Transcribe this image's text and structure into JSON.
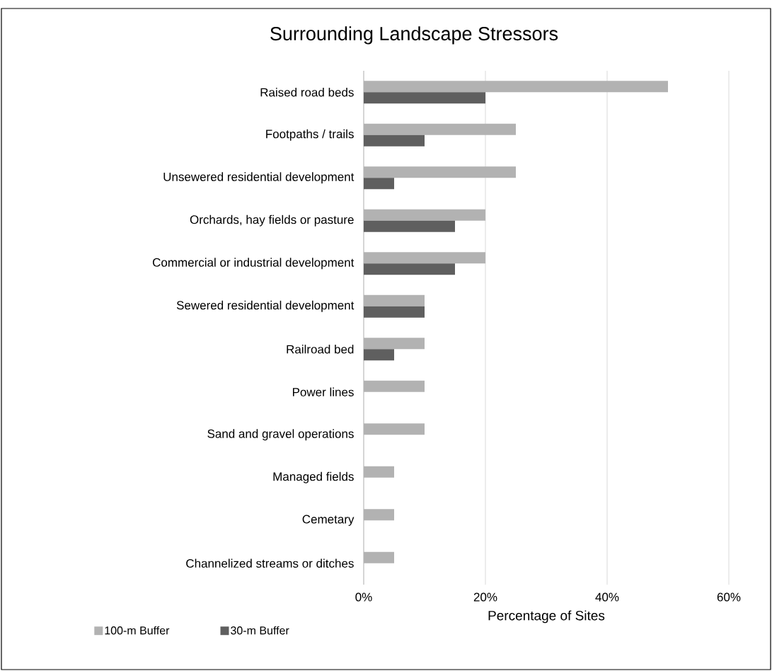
{
  "chart_data": {
    "type": "bar",
    "orientation": "horizontal",
    "title": "Surrounding Landscape Stressors",
    "xlabel": "Percentage of Sites",
    "categories": [
      "Raised road beds",
      "Footpaths / trails",
      "Unsewered residential development",
      "Orchards, hay fields or pasture",
      "Commercial or industrial development",
      "Sewered residential development",
      "Railroad bed",
      "Power lines",
      "Sand and gravel operations",
      "Managed fields",
      "Cemetary",
      "Channelized streams or ditches"
    ],
    "series": [
      {
        "name": "100-m Buffer",
        "color": "#b2b2b2",
        "values": [
          50,
          25,
          25,
          20,
          20,
          10,
          10,
          10,
          10,
          5,
          5,
          5
        ]
      },
      {
        "name": "30-m Buffer",
        "color": "#5f5f5f",
        "values": [
          20,
          10,
          5,
          15,
          15,
          10,
          5,
          0,
          0,
          0,
          0,
          0
        ]
      }
    ],
    "xlim": [
      0,
      60
    ],
    "xticks": [
      {
        "value": 0,
        "label": "0%"
      },
      {
        "value": 20,
        "label": "20%"
      },
      {
        "value": 40,
        "label": "40%"
      },
      {
        "value": 60,
        "label": "60%"
      }
    ],
    "grid": "x",
    "legend": "bottom left"
  }
}
